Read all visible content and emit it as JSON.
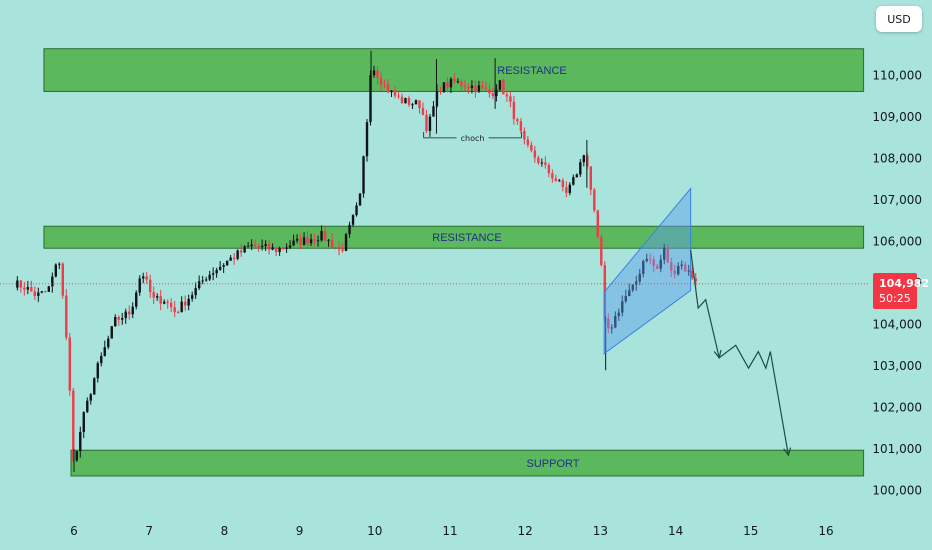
{
  "currency_label": "USD",
  "colors": {
    "background": "#a8e4dc",
    "zone_fill": "#5cb85c",
    "zone_stroke": "#2e6b2e",
    "zone_text": "#1f2f8a",
    "candle_up": "#0f1418",
    "candle_down": "#ef3b4a",
    "channel": "#5c9cf0",
    "price_line": "#f23645",
    "arrow": "#1e4d43",
    "axis_text": "#131722"
  },
  "last_price": {
    "value": 104982,
    "label": "104,982",
    "countdown": "50:25"
  },
  "chart_data": {
    "type": "candlestick",
    "x_ticks": [
      "6",
      "7",
      "8",
      "9",
      "10",
      "11",
      "12",
      "13",
      "14",
      "15",
      "16"
    ],
    "y_ticks": [
      "100,000",
      "101,000",
      "102,000",
      "103,000",
      "104,000",
      "105,000",
      "106,000",
      "107,000",
      "108,000",
      "109,000",
      "110,000"
    ],
    "y_tick_values": [
      100000,
      101000,
      102000,
      103000,
      104000,
      105000,
      106000,
      107000,
      108000,
      109000,
      110000
    ],
    "ylim": [
      99800,
      111000
    ],
    "xlim": [
      5.2,
      16.5
    ],
    "zones": [
      {
        "label": "RESISTANCE",
        "x_start": 5.6,
        "x_end": 16.5,
        "y_low": 109620,
        "y_high": 110650
      },
      {
        "label": "RESISTANCE",
        "x_start": 5.6,
        "x_end": 16.5,
        "y_low": 105840,
        "y_high": 106370
      },
      {
        "label": "SUPPORT",
        "x_start": 5.96,
        "x_end": 16.5,
        "y_low": 100350,
        "y_high": 100970
      }
    ],
    "choch": {
      "label": "choch",
      "x_start": 10.65,
      "x_end": 11.95,
      "y": 108500
    },
    "channel": {
      "lower": [
        [
          13.05,
          103300
        ],
        [
          14.2,
          104820
        ]
      ],
      "upper": [
        [
          13.05,
          104780
        ],
        [
          14.2,
          107280
        ]
      ]
    },
    "projection_path": [
      [
        14.2,
        105800
      ],
      [
        14.3,
        104400
      ],
      [
        14.4,
        104600
      ],
      [
        14.58,
        103200
      ],
      [
        14.8,
        103500
      ],
      [
        14.97,
        102950
      ],
      [
        15.1,
        103350
      ],
      [
        15.2,
        102950
      ],
      [
        15.26,
        103350
      ],
      [
        15.5,
        100850
      ]
    ],
    "anchors": [
      [
        5.2,
        105000
      ],
      [
        5.35,
        104900
      ],
      [
        5.5,
        104700
      ],
      [
        5.65,
        104800
      ],
      [
        5.8,
        105600
      ],
      [
        5.87,
        104400
      ],
      [
        5.95,
        102200
      ],
      [
        6.0,
        100500
      ],
      [
        6.1,
        101600
      ],
      [
        6.3,
        102900
      ],
      [
        6.55,
        104100
      ],
      [
        6.75,
        104300
      ],
      [
        6.9,
        105300
      ],
      [
        7.05,
        104600
      ],
      [
        7.2,
        104600
      ],
      [
        7.35,
        104300
      ],
      [
        7.6,
        104800
      ],
      [
        7.75,
        105150
      ],
      [
        8.05,
        105550
      ],
      [
        8.35,
        105900
      ],
      [
        8.7,
        105800
      ],
      [
        8.9,
        105950
      ],
      [
        9.3,
        106150
      ],
      [
        9.55,
        105750
      ],
      [
        9.8,
        107000
      ],
      [
        9.9,
        109000
      ],
      [
        9.95,
        110300
      ],
      [
        10.15,
        109700
      ],
      [
        10.35,
        109400
      ],
      [
        10.6,
        109300
      ],
      [
        10.7,
        108700
      ],
      [
        10.85,
        109700
      ],
      [
        11.05,
        109850
      ],
      [
        11.4,
        109700
      ],
      [
        11.55,
        109550
      ],
      [
        11.65,
        109850
      ],
      [
        11.8,
        109300
      ],
      [
        12.0,
        108300
      ],
      [
        12.3,
        107700
      ],
      [
        12.55,
        107200
      ],
      [
        12.7,
        107700
      ],
      [
        12.8,
        108200
      ],
      [
        12.88,
        107200
      ],
      [
        12.95,
        106200
      ],
      [
        13.02,
        105300
      ],
      [
        13.07,
        103700
      ],
      [
        13.18,
        104100
      ],
      [
        13.3,
        104600
      ],
      [
        13.45,
        104900
      ],
      [
        13.6,
        105700
      ],
      [
        13.75,
        105300
      ],
      [
        13.85,
        105800
      ],
      [
        13.95,
        105200
      ],
      [
        14.05,
        105500
      ],
      [
        14.2,
        105200
      ],
      [
        14.3,
        105050
      ]
    ],
    "last_price": 104982
  }
}
